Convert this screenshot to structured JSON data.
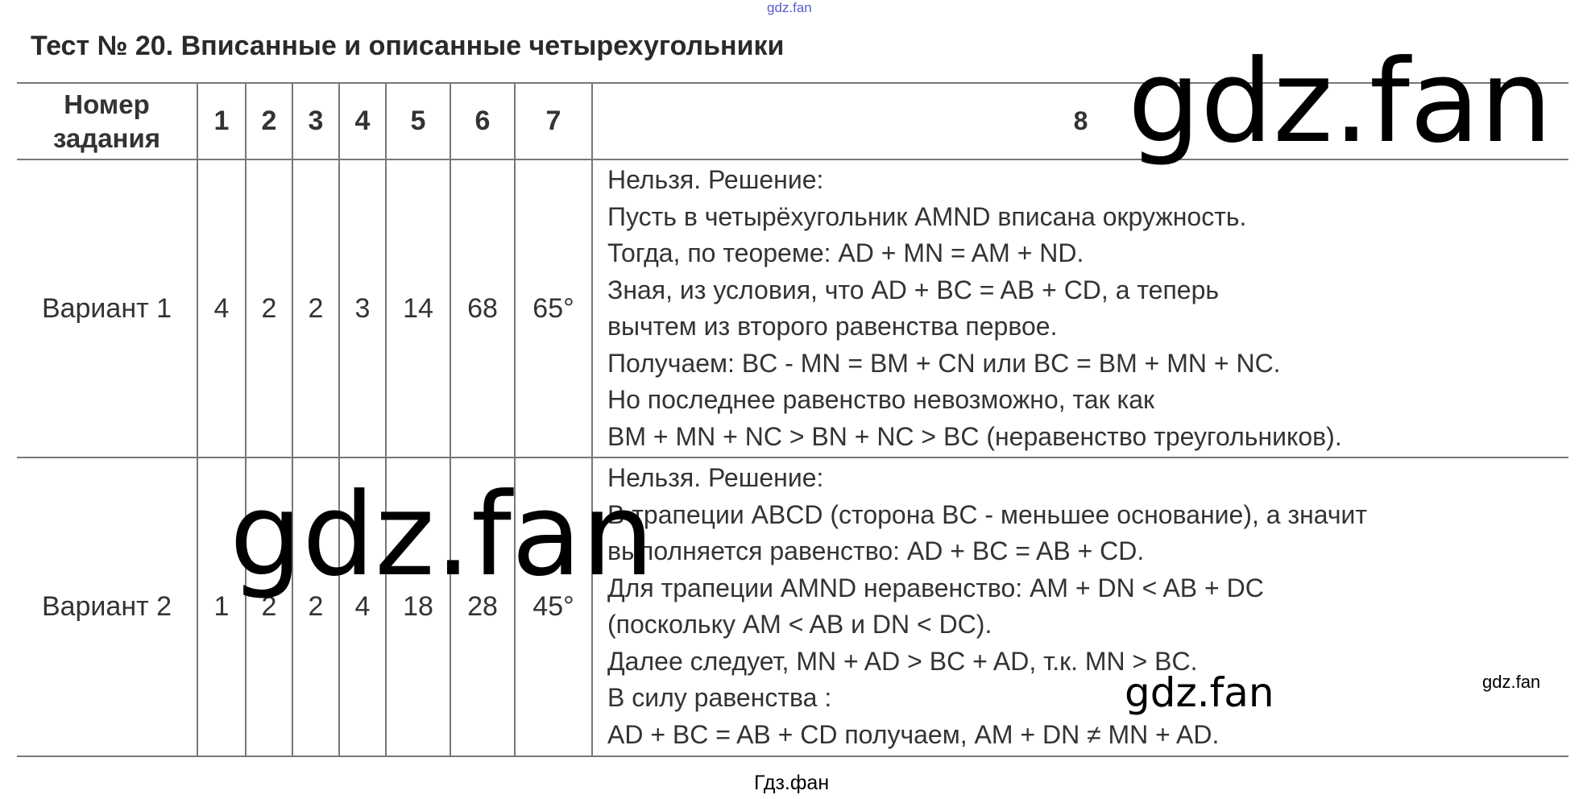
{
  "watermarks": {
    "top": "gdz.fan",
    "big1": "gdz.fan",
    "big2": "gdz.fan",
    "mid": "gdz.fan",
    "small": "gdz.fan",
    "bottom": "Гдз.фан"
  },
  "title": "Тест № 20. Вписанные и описанные четырехугольники",
  "table": {
    "header": [
      "Номер задания",
      "1",
      "2",
      "3",
      "4",
      "5",
      "6",
      "7",
      "8"
    ],
    "rows": [
      {
        "label": "Вариант 1",
        "answers": [
          "4",
          "2",
          "2",
          "3",
          "14",
          "68",
          "65°"
        ],
        "solution": [
          "Нельзя. Решение:",
          "Пусть в четырёхугольник AMND вписана окружность.",
          "Тогда, по теореме: AD + MN = AM + ND.",
          "Зная, из условия, что AD + BC = AB + CD, а теперь",
          "вычтем из второго равенства первое.",
          "Получаем: BC - MN = BM + CN или BC = BM + MN + NC.",
          "Но последнее равенство невозможно, так как",
          "BM + MN + NC > BN + NC > BC (неравенство треугольников)."
        ]
      },
      {
        "label": "Вариант 2",
        "answers": [
          "1",
          "2",
          "2",
          "4",
          "18",
          "28",
          "45°"
        ],
        "solution": [
          "Нельзя. Решение:",
          "В трапеции ABCD (сторона BC - меньшее основание), а значит",
          "выполняется равенство: AD + BC = AB + CD.",
          "Для трапеции AMND неравенство: AM + DN < AB + DC",
          "(поскольку AM < AB и DN < DC).",
          "Далее следует, MN + AD > BC + AD, т.к. MN > BC.",
          "В силу равенства :",
          "AD + BC = AB + CD получаем, AM + DN ≠ MN + AD."
        ]
      }
    ]
  }
}
